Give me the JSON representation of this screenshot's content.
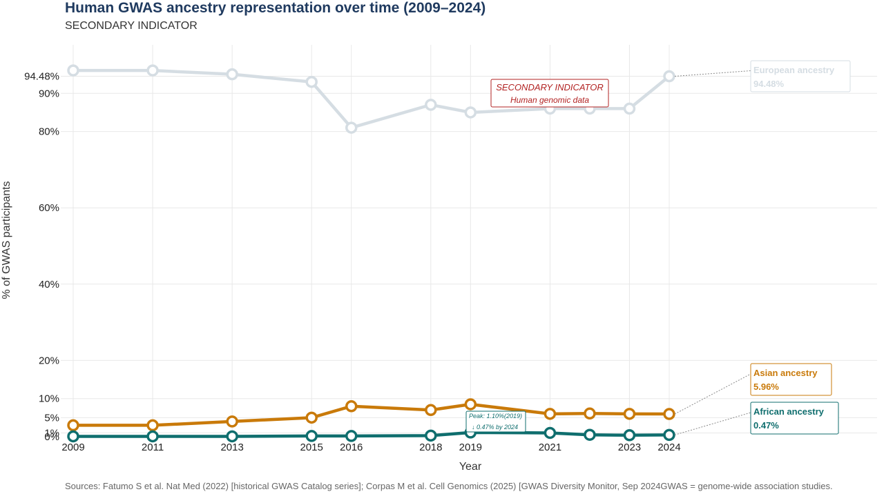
{
  "header": {
    "title": "Human GWAS ancestry representation over time (2009–2024)",
    "subtitle": "SECONDARY INDICATOR"
  },
  "footer": {
    "source": "Sources: Fatumo S et al. Nat Med (2022) [historical GWAS Catalog series]; Corpas M et al. Cell Genomics (2025) [GWAS Diversity Monitor, Sep 2024GWAS = genome-wide association studies."
  },
  "callout": {
    "line1": "SECONDARY INDICATOR",
    "line2": "Human genomic data"
  },
  "peak_note": {
    "line1": "Peak: 1.10%(2019)",
    "line2": "↓ 0.47% by 2024"
  },
  "colors": {
    "european": "#d5dde3",
    "asian": "#c97a0a",
    "african": "#0f6e6e",
    "callout": "#b22222",
    "grid": "#e8e8e8"
  },
  "chart_data": {
    "type": "line",
    "title": "Human GWAS ancestry representation over time (2009–2024)",
    "subtitle": "SECONDARY INDICATOR",
    "xlabel": "Year",
    "ylabel": "% of GWAS participants",
    "xlim": [
      2009,
      2024
    ],
    "ylim": [
      0,
      100
    ],
    "x_ticks": [
      "2009",
      "2011",
      "2013",
      "2015",
      "2016",
      "2018",
      "2019",
      "2021",
      "2023",
      "2024"
    ],
    "y_ticks": [
      {
        "value": 0,
        "label": "0%"
      },
      {
        "value": 1,
        "label": "1%"
      },
      {
        "value": 5,
        "label": "5%"
      },
      {
        "value": 10,
        "label": "10%"
      },
      {
        "value": 20,
        "label": "20%"
      },
      {
        "value": 40,
        "label": "40%"
      },
      {
        "value": 60,
        "label": "60%"
      },
      {
        "value": 80,
        "label": "80%"
      },
      {
        "value": 90,
        "label": "90%"
      },
      {
        "value": 94.48,
        "label": "94.48%"
      }
    ],
    "grid": true,
    "series": [
      {
        "name": "European ancestry",
        "end_label": "94.48%",
        "color": "#d5dde3",
        "x": [
          2009,
          2011,
          2013,
          2015,
          2016,
          2018,
          2019,
          2021,
          2022,
          2023,
          2024
        ],
        "values": [
          96,
          96,
          95,
          93,
          81,
          87,
          85,
          86,
          86,
          86,
          94.48
        ]
      },
      {
        "name": "Asian ancestry",
        "end_label": "5.96%",
        "color": "#c97a0a",
        "x": [
          2009,
          2011,
          2013,
          2015,
          2016,
          2018,
          2019,
          2021,
          2022,
          2023,
          2024
        ],
        "values": [
          3,
          3,
          4,
          5,
          8,
          7,
          8.5,
          6,
          6.1,
          6,
          5.96
        ]
      },
      {
        "name": "African ancestry",
        "end_label": "0.47%",
        "color": "#0f6e6e",
        "x": [
          2009,
          2011,
          2013,
          2015,
          2016,
          2018,
          2019,
          2021,
          2022,
          2023,
          2024
        ],
        "values": [
          0.1,
          0.1,
          0.1,
          0.2,
          0.2,
          0.3,
          1.1,
          1.0,
          0.5,
          0.4,
          0.47
        ]
      }
    ]
  }
}
